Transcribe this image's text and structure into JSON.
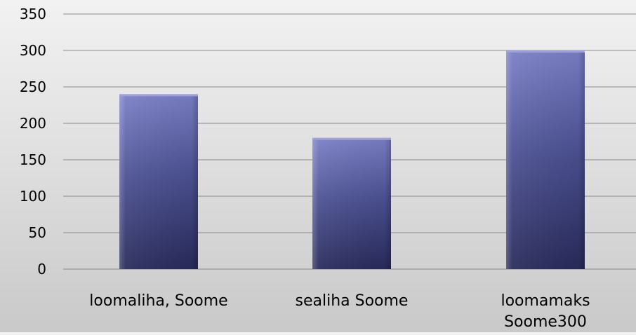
{
  "chart_data": {
    "type": "bar",
    "title": "",
    "xlabel": "",
    "ylabel": "",
    "categories": [
      [
        "loomaliha, Soome"
      ],
      [
        "sealiha Soome"
      ],
      [
        "loomamaks",
        "Soome300"
      ]
    ],
    "values": [
      240,
      180,
      300
    ],
    "ylim": [
      0,
      350
    ],
    "yticks": [
      0,
      50,
      100,
      150,
      200,
      250,
      300,
      350
    ],
    "grid": true,
    "legend": "none",
    "colors": {
      "bar_top": "#7a7fc6",
      "bar_mid": "#4d5294",
      "bar_bottom": "#282a5a",
      "gridline": "#8a8a8a",
      "axis": "#8a8a8a"
    }
  }
}
